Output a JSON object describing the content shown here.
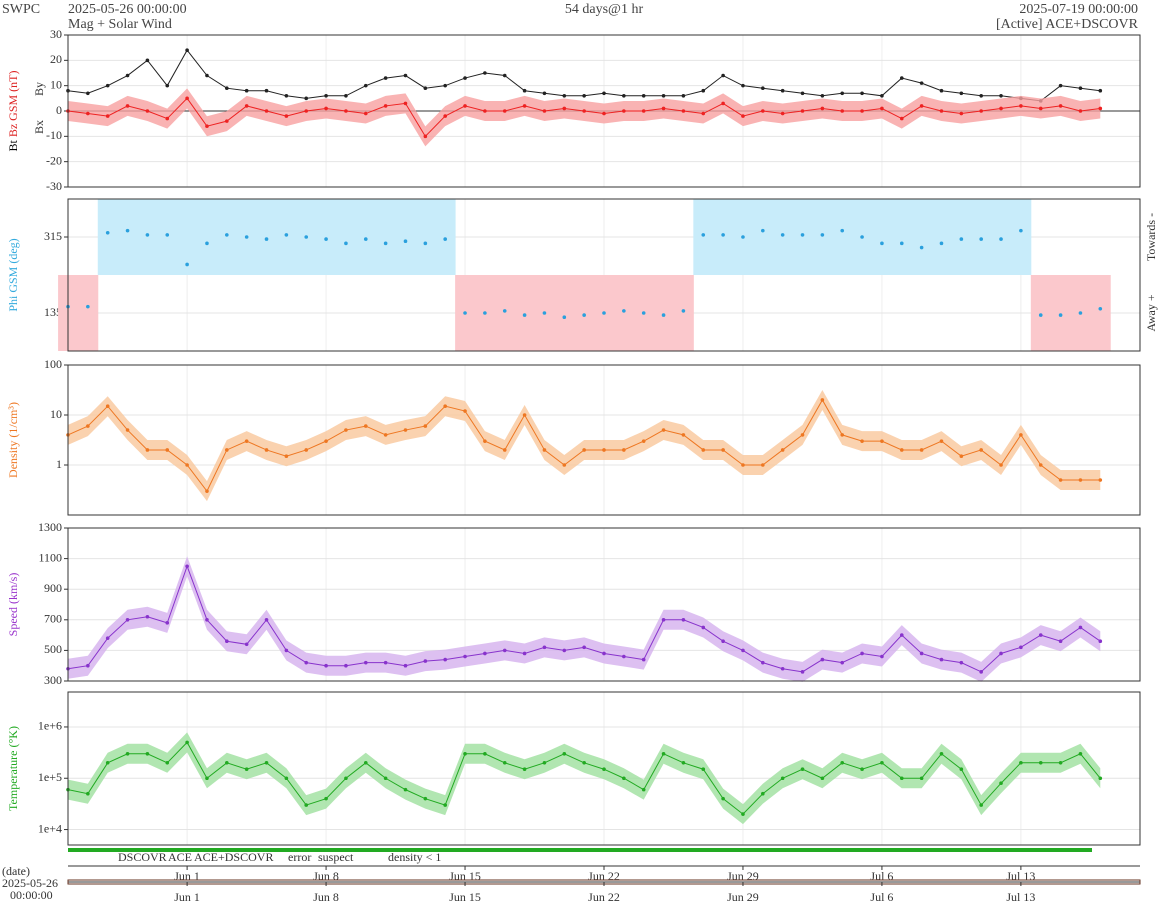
{
  "header": {
    "left": "SWPC",
    "start": "2025-05-26 00:00:00",
    "subtitle": "Mag + Solar Wind",
    "span": "54 days@1 hr",
    "end": "2025-07-19 00:00:00",
    "source": "[Active] ACE+DSCOVR"
  },
  "chart_data": {
    "type": "stacked-panels",
    "x": [
      "2025-05-26",
      "2025-05-27",
      "2025-05-28",
      "2025-05-29",
      "2025-05-30",
      "2025-05-31",
      "2025-06-01",
      "2025-06-02",
      "2025-06-03",
      "2025-06-04",
      "2025-06-05",
      "2025-06-06",
      "2025-06-07",
      "2025-06-08",
      "2025-06-09",
      "2025-06-10",
      "2025-06-11",
      "2025-06-12",
      "2025-06-13",
      "2025-06-14",
      "2025-06-15",
      "2025-06-16",
      "2025-06-17",
      "2025-06-18",
      "2025-06-19",
      "2025-06-20",
      "2025-06-21",
      "2025-06-22",
      "2025-06-23",
      "2025-06-24",
      "2025-06-25",
      "2025-06-26",
      "2025-06-27",
      "2025-06-28",
      "2025-06-29",
      "2025-06-30",
      "2025-07-01",
      "2025-07-02",
      "2025-07-03",
      "2025-07-04",
      "2025-07-05",
      "2025-07-06",
      "2025-07-07",
      "2025-07-08",
      "2025-07-09",
      "2025-07-10",
      "2025-07-11",
      "2025-07-12",
      "2025-07-13",
      "2025-07-14",
      "2025-07-15",
      "2025-07-16",
      "2025-07-17"
    ],
    "xlim": [
      "2025-05-26",
      "2025-07-19"
    ],
    "xticks": [
      {
        "value": "2025-06-01",
        "label": "Jun 1"
      },
      {
        "value": "2025-06-08",
        "label": "Jun 8"
      },
      {
        "value": "2025-06-15",
        "label": "Jun 15"
      },
      {
        "value": "2025-06-22",
        "label": "Jun 22"
      },
      {
        "value": "2025-06-29",
        "label": "Jun 29"
      },
      {
        "value": "2025-07-06",
        "label": "Jul 6"
      },
      {
        "value": "2025-07-13",
        "label": "Jul 13"
      }
    ],
    "xlabel": "(date)",
    "xstart": "2025-05-26",
    "xstart_time": "00:00:00",
    "panels": [
      {
        "type": "line",
        "ylabel": "Bz GSM (nT)",
        "ylabel_extra": [
          {
            "text": "Bt",
            "color": "#000000"
          },
          {
            "text": "Bx",
            "color": "#9933cc"
          },
          {
            "text": "By",
            "color": "#33aadd"
          }
        ],
        "ylabel_color": "#dd2222",
        "ylim": [
          -30,
          30
        ],
        "yticks": [
          -30,
          -20,
          -10,
          0,
          10,
          20,
          30
        ],
        "series": [
          {
            "name": "Bt",
            "color": "#222222",
            "values": [
              8,
              7,
              10,
              14,
              20,
              10,
              24,
              14,
              9,
              8,
              8,
              6,
              5,
              6,
              6,
              10,
              13,
              14,
              9,
              10,
              13,
              15,
              14,
              8,
              7,
              6,
              6,
              7,
              6,
              6,
              6,
              6,
              8,
              14,
              10,
              9,
              8,
              7,
              6,
              7,
              7,
              6,
              13,
              11,
              8,
              7,
              6,
              6,
              5,
              4,
              10,
              9,
              8
            ]
          },
          {
            "name": "Bz GSM",
            "color": "#ee2222",
            "band": "#f8a0a0",
            "values": [
              0,
              -1,
              -2,
              2,
              0,
              -3,
              5,
              -6,
              -4,
              2,
              0,
              -2,
              0,
              1,
              0,
              -1,
              2,
              3,
              -10,
              -2,
              2,
              0,
              0,
              2,
              0,
              1,
              0,
              -1,
              0,
              0,
              1,
              0,
              -1,
              3,
              -2,
              0,
              -1,
              0,
              1,
              0,
              0,
              1,
              -3,
              2,
              0,
              -1,
              0,
              1,
              2,
              1,
              2,
              0,
              1
            ]
          }
        ]
      },
      {
        "type": "phi",
        "ylabel": "Phi GSM (deg)",
        "ylabel_color": "#33aadd",
        "ylim": [
          45,
          405
        ],
        "yticks": [
          135,
          315
        ],
        "split": 225,
        "right_labels": [
          "Towards -",
          "Away +"
        ],
        "toward_color": "#c8ecfa",
        "away_color": "#fbc8cc",
        "series": [
          {
            "name": "Phi",
            "color": "#2aa0dd",
            "values": [
              150,
              150,
              325,
              330,
              320,
              320,
              250,
              300,
              320,
              315,
              310,
              320,
              315,
              310,
              300,
              310,
              300,
              305,
              300,
              310,
              135,
              135,
              140,
              130,
              135,
              125,
              130,
              135,
              140,
              135,
              130,
              140,
              320,
              320,
              315,
              330,
              320,
              320,
              320,
              330,
              315,
              300,
              300,
              290,
              300,
              310,
              310,
              310,
              330,
              130,
              130,
              135,
              145
            ]
          }
        ]
      },
      {
        "type": "line",
        "log": true,
        "ylabel": "Density (1/cm³)",
        "ylabel_color": "#ee7722",
        "ylim": [
          0.1,
          100
        ],
        "yticks": [
          1,
          10,
          100
        ],
        "series": [
          {
            "name": "Density",
            "color": "#ee7722",
            "band": "#f9c79b",
            "values": [
              4,
              6,
              15,
              5,
              2,
              2,
              1,
              0.3,
              2,
              3,
              2,
              1.5,
              2,
              3,
              5,
              6,
              4,
              5,
              6,
              15,
              12,
              3,
              2,
              10,
              2,
              1,
              2,
              2,
              2,
              3,
              5,
              4,
              2,
              2,
              1,
              1,
              2,
              4,
              20,
              4,
              3,
              3,
              2,
              2,
              3,
              1.5,
              2,
              1,
              4,
              1,
              0.5,
              0.5,
              0.5
            ]
          }
        ]
      },
      {
        "type": "line",
        "ylabel": "Speed (km/s)",
        "ylabel_color": "#9933cc",
        "ylim": [
          300,
          1300
        ],
        "yticks": [
          300,
          500,
          700,
          900,
          1100,
          1300
        ],
        "series": [
          {
            "name": "Speed",
            "color": "#8833cc",
            "band": "#d4b0ee",
            "values": [
              380,
              400,
              580,
              700,
              720,
              680,
              1050,
              700,
              560,
              540,
              700,
              500,
              420,
              400,
              400,
              420,
              420,
              400,
              430,
              440,
              460,
              480,
              500,
              480,
              520,
              500,
              520,
              480,
              460,
              440,
              700,
              700,
              650,
              560,
              500,
              420,
              380,
              360,
              440,
              420,
              480,
              460,
              600,
              480,
              440,
              420,
              360,
              480,
              520,
              600,
              560,
              650,
              560
            ]
          }
        ]
      },
      {
        "type": "line",
        "log": true,
        "ylabel": "Temperature (°K)",
        "ylabel_color": "#22aa22",
        "ylim": [
          5000,
          4800000
        ],
        "yticks": [
          {
            "value": 10000,
            "label": "1e+4"
          },
          {
            "value": 100000,
            "label": "1e+5"
          },
          {
            "value": 1000000,
            "label": "1e+6"
          }
        ],
        "series": [
          {
            "name": "Temperature",
            "color": "#22aa22",
            "band": "#9ee09e",
            "values": [
              60000,
              50000,
              200000,
              300000,
              300000,
              200000,
              500000,
              100000,
              200000,
              150000,
              200000,
              100000,
              30000,
              40000,
              100000,
              200000,
              100000,
              60000,
              40000,
              30000,
              300000,
              300000,
              200000,
              150000,
              200000,
              300000,
              200000,
              150000,
              100000,
              60000,
              300000,
              200000,
              150000,
              40000,
              20000,
              50000,
              100000,
              150000,
              100000,
              200000,
              150000,
              200000,
              100000,
              100000,
              300000,
              150000,
              30000,
              80000,
              200000,
              200000,
              200000,
              300000,
              100000
            ]
          }
        ]
      }
    ],
    "legend": [
      {
        "name": "DSCOVR",
        "color": "#2222cc"
      },
      {
        "name": "ACE",
        "color": "#22aa22"
      },
      {
        "name": "ACE+DSCOVR",
        "color": "#dd22dd"
      },
      {
        "name": "error",
        "color": "#dd2222"
      },
      {
        "name": "suspect",
        "color": "#ddbb00"
      },
      {
        "name": "density < 1",
        "color": "#ee7722"
      }
    ]
  }
}
